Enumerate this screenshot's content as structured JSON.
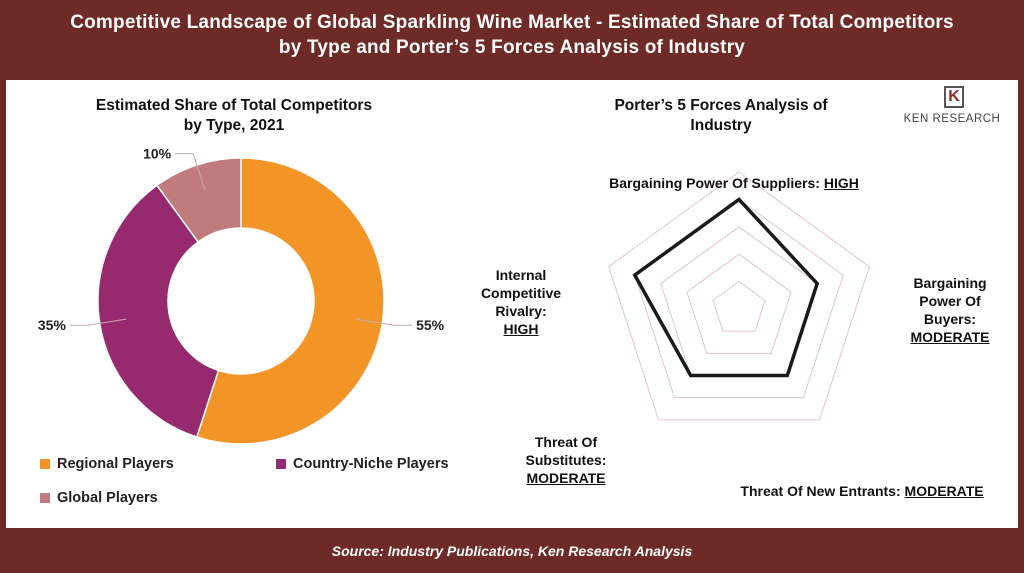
{
  "header": {
    "title_line1": "Competitive Landscape of Global Sparkling Wine Market - Estimated Share of Total Competitors",
    "title_line2": "by Type and Porter’s 5 Forces Analysis of Industry"
  },
  "footer": {
    "source": "Source: Industry Publications, Ken Research Analysis"
  },
  "logo": {
    "mark": "K",
    "name": "KEN RESEARCH"
  },
  "chart_data": [
    {
      "type": "pie",
      "title_line1": "Estimated Share of Total Competitors",
      "title_line2": "by Type, 2021",
      "categories": [
        "Regional Players",
        "Country-Niche Players",
        "Global Players"
      ],
      "values": [
        55,
        35,
        10
      ],
      "labels": [
        "55%",
        "35%",
        "10%"
      ],
      "colors": [
        "#f39426",
        "#97296f",
        "#c07b7c"
      ],
      "donut": true,
      "legend_position": "bottom"
    },
    {
      "type": "radar",
      "title_line1": "Porter’s 5 Forces Analysis of",
      "title_line2": "Industry",
      "axes": [
        {
          "name": "Bargaining Power Of Suppliers:",
          "level": "HIGH"
        },
        {
          "name": "Bargaining Power Of Buyers:",
          "level": "MODERATE"
        },
        {
          "name": "Threat Of New Entrants:",
          "level": "MODERATE"
        },
        {
          "name": "Threat Of Substitutes:",
          "level": "MODERATE"
        },
        {
          "name": "Internal Competitive Rivalry:",
          "level": "HIGH"
        }
      ],
      "values": [
        4,
        3,
        3,
        3,
        4
      ],
      "max": 5,
      "line_color": "#1a1a1a",
      "grid_color": "#e3c6c6"
    }
  ]
}
